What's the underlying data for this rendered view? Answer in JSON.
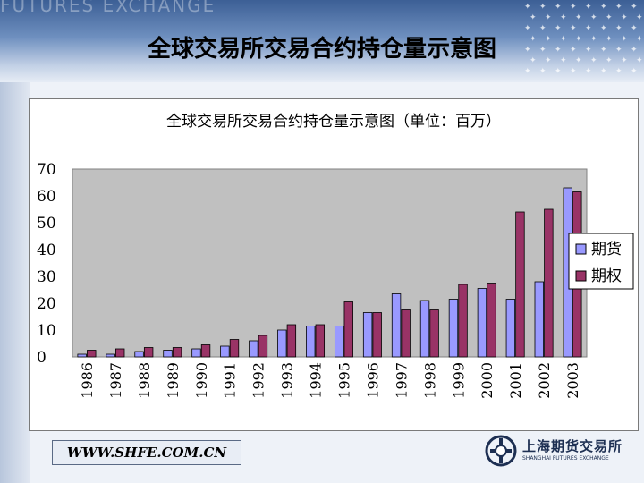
{
  "slide": {
    "title": "全球交易所交易合约持仓量示意图",
    "banner_text": "FUTURES EXCHANGE",
    "footer_url": "WWW.SHFE.COM.CN",
    "logo_name": "上海期货交易所",
    "logo_en": "SHANGHAI FUTURES EXCHANGE"
  },
  "colors": {
    "futures": "#9999ff",
    "options": "#993366",
    "plot_bg": "#c0c0c0"
  },
  "chart_data": {
    "type": "bar",
    "title": "全球交易所交易合约持仓量示意图（单位：百万）",
    "categories": [
      "1986",
      "1987",
      "1988",
      "1989",
      "1990",
      "1991",
      "1992",
      "1993",
      "1994",
      "1995",
      "1996",
      "1997",
      "1998",
      "1999",
      "2000",
      "2001",
      "2002",
      "2003"
    ],
    "series": [
      {
        "name": "期货",
        "values": [
          1,
          1,
          2,
          2.5,
          3,
          4,
          6,
          10,
          11.5,
          11.5,
          16.5,
          23.5,
          21,
          21.5,
          25.5,
          21.5,
          28,
          63
        ]
      },
      {
        "name": "期权",
        "values": [
          2.5,
          3,
          3.5,
          3.5,
          4.5,
          6.5,
          8,
          12,
          12,
          20.5,
          16.5,
          17.5,
          17.5,
          27,
          27.5,
          54,
          55,
          61.5
        ]
      }
    ],
    "yticks": [
      0,
      10,
      20,
      30,
      40,
      50,
      60,
      70
    ],
    "ylim": [
      0,
      70
    ],
    "grid": false,
    "legend": "right"
  }
}
